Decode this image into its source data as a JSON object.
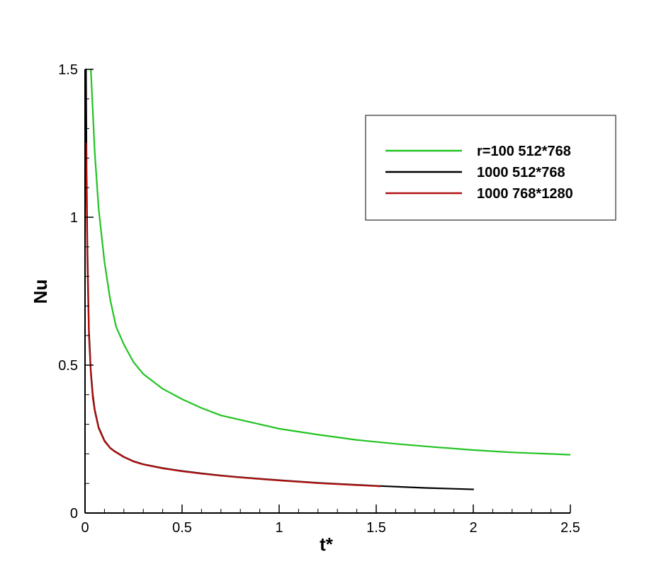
{
  "chart_data": {
    "type": "line",
    "xlabel": "t*",
    "ylabel": "Nu",
    "xlim": [
      0,
      2.5
    ],
    "ylim": [
      0,
      1.5
    ],
    "xticks": [
      0,
      0.5,
      1,
      1.5,
      2,
      2.5
    ],
    "xtick_labels": [
      "0",
      "0.5",
      "1",
      "1.5",
      "2",
      "2.5"
    ],
    "yticks": [
      0,
      0.5,
      1,
      1.5
    ],
    "ytick_labels": [
      "0",
      "0.5",
      "1",
      "1.5"
    ],
    "x_minor_step": 0.1,
    "y_minor_step": 0.1,
    "grid": false,
    "legend_position": "top-right",
    "series": [
      {
        "name": "r=100 512*768",
        "color": "#22c322",
        "x": [
          0.03,
          0.05,
          0.07,
          0.1,
          0.13,
          0.16,
          0.2,
          0.25,
          0.3,
          0.4,
          0.5,
          0.6,
          0.7,
          0.8,
          0.9,
          1.0,
          1.2,
          1.4,
          1.6,
          1.8,
          2.0,
          2.2,
          2.5
        ],
        "y": [
          1.5,
          1.22,
          1.03,
          0.85,
          0.72,
          0.63,
          0.57,
          0.51,
          0.47,
          0.42,
          0.385,
          0.355,
          0.33,
          0.315,
          0.3,
          0.285,
          0.265,
          0.247,
          0.234,
          0.223,
          0.213,
          0.205,
          0.197
        ]
      },
      {
        "name": "1000 512*768",
        "color": "#000000",
        "x": [
          0.005,
          0.008,
          0.012,
          0.02,
          0.03,
          0.04,
          0.05,
          0.07,
          0.1,
          0.13,
          0.15,
          0.2,
          0.25,
          0.3,
          0.4,
          0.5,
          0.6,
          0.7,
          0.8,
          1.0,
          1.2,
          1.5,
          1.75,
          2.0
        ],
        "y": [
          1.5,
          1.15,
          0.9,
          0.62,
          0.48,
          0.4,
          0.35,
          0.29,
          0.245,
          0.22,
          0.21,
          0.19,
          0.175,
          0.165,
          0.152,
          0.142,
          0.134,
          0.127,
          0.121,
          0.111,
          0.102,
          0.092,
          0.085,
          0.08
        ]
      },
      {
        "name": "1000 768*1280",
        "color": "#b01010",
        "x": [
          0.005,
          0.008,
          0.012,
          0.02,
          0.03,
          0.04,
          0.05,
          0.07,
          0.1,
          0.13,
          0.15,
          0.2,
          0.25,
          0.3,
          0.4,
          0.5,
          0.6,
          0.7,
          0.8,
          1.0,
          1.2,
          1.5,
          1.52
        ],
        "y": [
          1.25,
          1.05,
          0.85,
          0.6,
          0.47,
          0.39,
          0.345,
          0.287,
          0.243,
          0.219,
          0.209,
          0.189,
          0.174,
          0.164,
          0.151,
          0.141,
          0.133,
          0.126,
          0.12,
          0.11,
          0.101,
          0.091,
          0.09
        ]
      }
    ]
  }
}
